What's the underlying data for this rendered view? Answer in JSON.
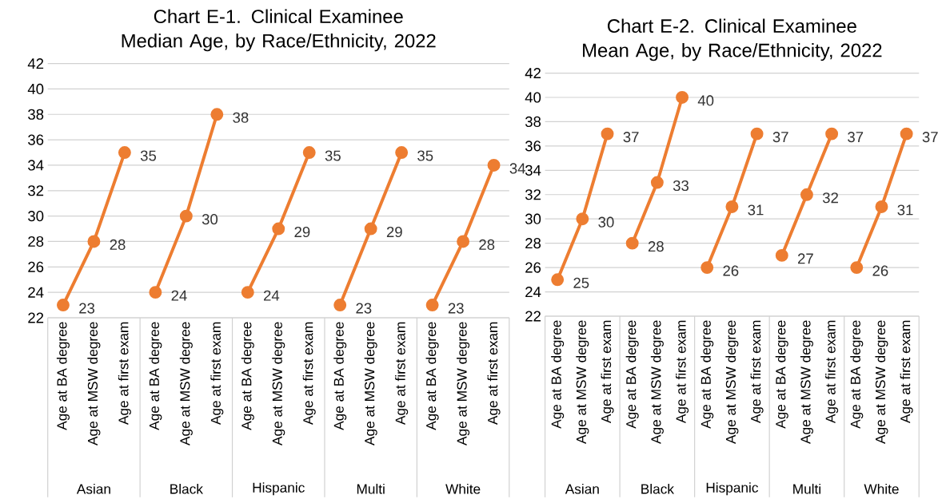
{
  "chart_data": [
    {
      "type": "line",
      "title": "Chart E-1. Clinical Examinee Median Age, by Race/Ethnicity, 2022",
      "categories": [
        "Age at BA degree",
        "Age at MSW degree",
        "Age at first exam",
        "Age at BA degree",
        "Age at MSW degree",
        "Age at first exam",
        "Age at BA degree",
        "Age at MSW degree",
        "Age at first exam",
        "Age at BA degree",
        "Age at MSW degree",
        "Age at first exam",
        "Age at BA degree",
        "Age at MSW degree",
        "Age at first exam"
      ],
      "annotations": [
        "Asian",
        "Black",
        "Hispanic",
        "Multi",
        "White"
      ],
      "series": [
        {
          "color": "#ed7d31",
          "values": [
            23,
            28,
            35,
            null,
            null,
            null,
            null,
            null,
            null,
            null,
            null,
            null,
            null,
            null,
            null
          ]
        },
        {
          "color": "#ed7d31",
          "values": [
            null,
            null,
            null,
            24,
            30,
            38,
            null,
            null,
            null,
            null,
            null,
            null,
            null,
            null,
            null
          ]
        },
        {
          "color": "#ed7d31",
          "values": [
            null,
            null,
            null,
            null,
            null,
            null,
            24,
            29,
            35,
            null,
            null,
            null,
            null,
            null,
            null
          ]
        },
        {
          "color": "#ed7d31",
          "values": [
            null,
            null,
            null,
            null,
            null,
            null,
            null,
            null,
            null,
            23,
            29,
            35,
            null,
            null,
            null
          ]
        },
        {
          "color": "#ed7d31",
          "values": [
            null,
            null,
            null,
            null,
            null,
            null,
            null,
            null,
            null,
            null,
            null,
            null,
            23,
            28,
            34
          ]
        }
      ],
      "ylim": [
        22,
        42
      ],
      "yticks": [
        22,
        24,
        26,
        28,
        30,
        32,
        34,
        36,
        38,
        40,
        42
      ],
      "grid": "y",
      "marker": "circle",
      "data_labels": true
    },
    {
      "type": "line",
      "title": "Chart E-2. Clinical Examinee Mean Age, by Race/Ethnicity, 2022",
      "categories": [
        "Age at BA degree",
        "Age at MSW degree",
        "Age at first exam",
        "Age at BA degree",
        "Age at MSW degree",
        "Age at first exam",
        "Age at BA degree",
        "Age at MSW degree",
        "Age at first exam",
        "Age at BA degree",
        "Age at MSW degree",
        "Age at first exam",
        "Age at BA degree",
        "Age at MSW degree",
        "Age at first exam"
      ],
      "annotations": [
        "Asian",
        "Black",
        "Hispanic",
        "Multi",
        "White"
      ],
      "series": [
        {
          "color": "#ed7d31",
          "values": [
            25,
            30,
            37,
            null,
            null,
            null,
            null,
            null,
            null,
            null,
            null,
            null,
            null,
            null,
            null
          ]
        },
        {
          "color": "#ed7d31",
          "values": [
            null,
            null,
            null,
            28,
            33,
            40,
            null,
            null,
            null,
            null,
            null,
            null,
            null,
            null,
            null
          ]
        },
        {
          "color": "#ed7d31",
          "values": [
            null,
            null,
            null,
            null,
            null,
            null,
            26,
            31,
            37,
            null,
            null,
            null,
            null,
            null,
            null
          ]
        },
        {
          "color": "#ed7d31",
          "values": [
            null,
            null,
            null,
            null,
            null,
            null,
            null,
            null,
            null,
            27,
            32,
            37,
            null,
            null,
            null
          ]
        },
        {
          "color": "#ed7d31",
          "values": [
            null,
            null,
            null,
            null,
            null,
            null,
            null,
            null,
            null,
            null,
            null,
            null,
            26,
            31,
            37
          ]
        }
      ],
      "ylim": [
        22,
        42
      ],
      "yticks": [
        22,
        24,
        26,
        28,
        30,
        32,
        34,
        36,
        38,
        40,
        42
      ],
      "grid": "y",
      "marker": "circle",
      "data_labels": true
    }
  ]
}
